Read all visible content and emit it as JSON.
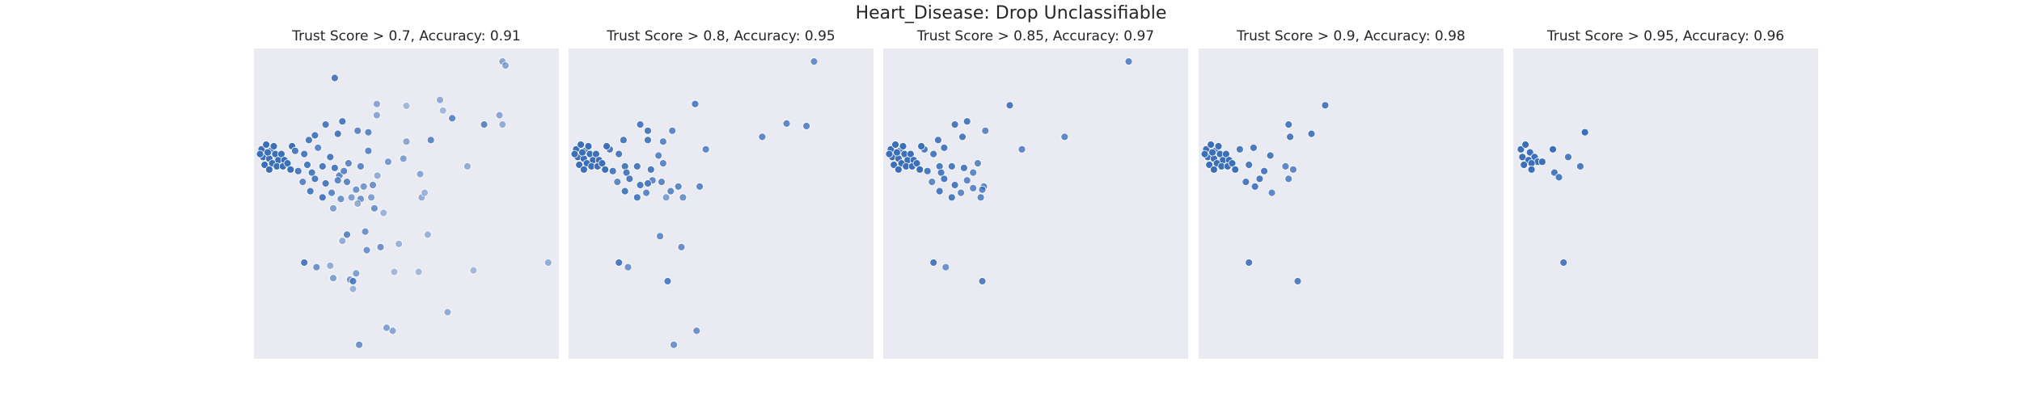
{
  "figure": {
    "title": "Heart_Disease: Drop Unclassifiable"
  },
  "chart_data": [
    {
      "type": "scatter",
      "title": "Trust Score > 0.7, Accuracy: 0.91",
      "xlim": [
        0,
        100
      ],
      "ylim": [
        0,
        100
      ],
      "grid": false,
      "color": "#3b6fba",
      "points": [
        [
          81.5,
          95.8,
          0.55
        ],
        [
          82.5,
          94.5,
          0.55
        ],
        [
          61.0,
          83.4,
          0.5
        ],
        [
          26.5,
          90.5,
          0.9
        ],
        [
          40.3,
          82.1,
          0.55
        ],
        [
          40.3,
          78.5,
          0.55
        ],
        [
          50,
          81.5,
          0.4
        ],
        [
          62,
          80,
          0.4
        ],
        [
          80.5,
          78.5,
          0.55
        ],
        [
          75.5,
          75.5,
          0.8
        ],
        [
          81.5,
          75.5,
          0.5
        ],
        [
          65,
          77.5,
          0.8
        ],
        [
          58,
          70.5,
          0.8
        ],
        [
          2.5,
          67.5,
          1
        ],
        [
          4,
          69,
          1
        ],
        [
          5.5,
          67,
          1
        ],
        [
          7,
          66,
          1
        ],
        [
          3,
          65,
          1
        ],
        [
          5,
          64.5,
          1
        ],
        [
          8,
          64,
          1
        ],
        [
          6,
          63,
          1
        ],
        [
          3.5,
          62.5,
          1
        ],
        [
          7.5,
          62,
          1
        ],
        [
          5,
          61,
          1
        ],
        [
          9,
          66,
          1
        ],
        [
          2,
          66,
          1
        ],
        [
          6.5,
          68.5,
          1
        ],
        [
          4.5,
          66.5,
          1
        ],
        [
          10,
          64,
          1
        ],
        [
          9.5,
          62,
          1
        ],
        [
          11,
          63,
          1
        ],
        [
          12,
          61,
          1
        ],
        [
          12.5,
          68.5,
          1
        ],
        [
          13.5,
          67,
          0.9
        ],
        [
          18,
          70.5,
          0.9
        ],
        [
          20,
          72,
          0.9
        ],
        [
          23.5,
          75.5,
          0.9
        ],
        [
          29,
          76.5,
          0.9
        ],
        [
          27.5,
          72.5,
          0.9
        ],
        [
          34,
          73.5,
          0.8
        ],
        [
          37.5,
          73,
          0.8
        ],
        [
          21,
          68,
          0.8
        ],
        [
          16.5,
          66,
          0.9
        ],
        [
          25,
          65,
          0.9
        ],
        [
          17.5,
          62.5,
          0.9
        ],
        [
          22.5,
          62,
          0.9
        ],
        [
          14.5,
          60.5,
          0.9
        ],
        [
          19,
          60,
          0.9
        ],
        [
          26.5,
          61.5,
          0.9
        ],
        [
          28,
          59,
          0.8
        ],
        [
          30.5,
          57,
          0.8
        ],
        [
          35,
          62,
          0.8
        ],
        [
          31,
          63,
          0.8
        ],
        [
          37.5,
          67,
          0.8
        ],
        [
          44,
          63.5,
          0.65
        ],
        [
          20,
          58,
          0.9
        ],
        [
          23.5,
          56.5,
          0.9
        ],
        [
          16,
          57,
          0.8
        ],
        [
          25.5,
          53.5,
          0.8
        ],
        [
          18.5,
          54,
          0.9
        ],
        [
          27.5,
          57.5,
          0.8
        ],
        [
          32,
          52,
          0.6
        ],
        [
          33.5,
          54.5,
          0.7
        ],
        [
          35,
          51.5,
          0.7
        ],
        [
          38.5,
          52,
          0.6
        ],
        [
          36,
          55.5,
          0.65
        ],
        [
          39,
          56,
          0.7
        ],
        [
          29.5,
          60.5,
          0.8
        ],
        [
          50,
          70,
          0.55
        ],
        [
          54.5,
          59.5,
          0.55
        ],
        [
          49,
          64.5,
          0.6
        ],
        [
          34,
          50,
          0.5
        ],
        [
          40.5,
          59,
          0.5
        ],
        [
          22.5,
          52,
          0.9
        ],
        [
          28.5,
          51.5,
          0.7
        ],
        [
          26,
          48.5,
          0.6
        ],
        [
          39.5,
          48.5,
          0.7
        ],
        [
          42.5,
          47,
          0.45
        ],
        [
          55,
          52,
          0.5
        ],
        [
          56,
          53.5,
          0.45
        ],
        [
          70,
          62,
          0.5
        ],
        [
          30.5,
          40,
          0.8
        ],
        [
          29,
          38,
          0.5
        ],
        [
          36.5,
          41,
          0.7
        ],
        [
          33.5,
          27.5,
          0.6
        ],
        [
          37,
          35,
          0.7
        ],
        [
          41.5,
          36,
          0.7
        ],
        [
          47.5,
          37,
          0.45
        ],
        [
          57,
          40,
          0.45
        ],
        [
          16.5,
          31,
          0.9
        ],
        [
          20.5,
          29.5,
          0.7
        ],
        [
          26,
          26,
          0.6
        ],
        [
          31.5,
          25.5,
          0.65
        ],
        [
          32.5,
          25,
          0.85
        ],
        [
          25,
          30,
          0.5
        ],
        [
          32.5,
          22.5,
          0.45
        ],
        [
          46,
          28,
          0.4
        ],
        [
          54,
          28,
          0.4
        ],
        [
          72,
          28.5,
          0.4
        ],
        [
          96.5,
          31,
          0.5
        ],
        [
          45.5,
          9,
          0.55
        ],
        [
          43.5,
          10,
          0.6
        ],
        [
          34.5,
          4.5,
          0.7
        ],
        [
          63.5,
          15,
          0.5
        ]
      ]
    },
    {
      "type": "scatter",
      "title": "Trust Score > 0.8, Accuracy: 0.95",
      "xlim": [
        0,
        100
      ],
      "ylim": [
        0,
        100
      ],
      "grid": false,
      "color": "#3b6fba",
      "points": [
        [
          80.5,
          95.8,
          0.75
        ],
        [
          41.5,
          82.1,
          0.85
        ],
        [
          63.5,
          71.5,
          0.8
        ],
        [
          71.5,
          75.8,
          0.8
        ],
        [
          78,
          75,
          0.8
        ],
        [
          13.5,
          67.5,
          0.9
        ],
        [
          18,
          70.5,
          0.9
        ],
        [
          23.5,
          75.5,
          0.9
        ],
        [
          26,
          73.5,
          0.9
        ],
        [
          34,
          73.5,
          0.8
        ],
        [
          26,
          70.5,
          0.9
        ],
        [
          31,
          70,
          0.8
        ],
        [
          45,
          67.5,
          0.8
        ],
        [
          2.5,
          67.5,
          1
        ],
        [
          4,
          69,
          1
        ],
        [
          5.5,
          67,
          1
        ],
        [
          7,
          66,
          1
        ],
        [
          3,
          65,
          1
        ],
        [
          5,
          64.5,
          1
        ],
        [
          8,
          64,
          1
        ],
        [
          6,
          63,
          1
        ],
        [
          3.5,
          62.5,
          1
        ],
        [
          7.5,
          62,
          1
        ],
        [
          5,
          61,
          1
        ],
        [
          9,
          66,
          1
        ],
        [
          2,
          66,
          1
        ],
        [
          6.5,
          68.5,
          1
        ],
        [
          4.5,
          66.5,
          1
        ],
        [
          10,
          64,
          1
        ],
        [
          9.5,
          62,
          1
        ],
        [
          11,
          63,
          1
        ],
        [
          12,
          61,
          1
        ],
        [
          12.5,
          68.5,
          1
        ],
        [
          16.5,
          66,
          0.9
        ],
        [
          18.5,
          62,
          0.9
        ],
        [
          22.5,
          62,
          0.9
        ],
        [
          14.5,
          60.5,
          0.9
        ],
        [
          19,
          60,
          0.9
        ],
        [
          27,
          61,
          0.9
        ],
        [
          30.5,
          57,
          0.8
        ],
        [
          31,
          63,
          0.8
        ],
        [
          29.5,
          65.5,
          0.8
        ],
        [
          20,
          58,
          0.9
        ],
        [
          23.5,
          56,
          0.9
        ],
        [
          16,
          57,
          0.8
        ],
        [
          25.5,
          53.5,
          0.8
        ],
        [
          18.5,
          54,
          0.9
        ],
        [
          27.5,
          57.5,
          0.8
        ],
        [
          32,
          52,
          0.6
        ],
        [
          33.5,
          54,
          0.8
        ],
        [
          37.5,
          52,
          0.7
        ],
        [
          36,
          55.5,
          0.8
        ],
        [
          43,
          55.5,
          0.8
        ],
        [
          22.5,
          52,
          0.9
        ],
        [
          26,
          56.5,
          0.9
        ],
        [
          30,
          39.5,
          0.75
        ],
        [
          37,
          36,
          0.75
        ],
        [
          16.5,
          31,
          0.9
        ],
        [
          19.5,
          29.5,
          0.7
        ],
        [
          32.5,
          25,
          0.85
        ],
        [
          42,
          9,
          0.7
        ],
        [
          34.5,
          4.5,
          0.7
        ]
      ]
    },
    {
      "type": "scatter",
      "title": "Trust Score > 0.85, Accuracy: 0.97",
      "xlim": [
        0,
        100
      ],
      "ylim": [
        0,
        100
      ],
      "grid": false,
      "color": "#3b6fba",
      "points": [
        [
          80.5,
          95.8,
          0.8
        ],
        [
          41.5,
          81.7,
          0.9
        ],
        [
          59.5,
          71.5,
          0.8
        ],
        [
          45.5,
          67.5,
          0.8
        ],
        [
          23.5,
          75.5,
          0.9
        ],
        [
          27.5,
          76.5,
          0.9
        ],
        [
          26,
          71.5,
          0.9
        ],
        [
          33.5,
          73.5,
          0.8
        ],
        [
          13.5,
          67.5,
          0.9
        ],
        [
          18,
          70.5,
          0.9
        ],
        [
          20,
          68,
          0.9
        ],
        [
          2.5,
          67.5,
          1
        ],
        [
          4,
          69,
          1
        ],
        [
          5.5,
          67,
          1
        ],
        [
          7,
          66,
          1
        ],
        [
          3,
          65,
          1
        ],
        [
          5,
          64.5,
          1
        ],
        [
          8,
          64,
          1
        ],
        [
          6,
          63,
          1
        ],
        [
          3.5,
          62.5,
          1
        ],
        [
          7.5,
          62,
          1
        ],
        [
          5,
          61,
          1
        ],
        [
          9,
          66,
          1
        ],
        [
          2,
          66,
          1
        ],
        [
          6.5,
          68.5,
          1
        ],
        [
          4.5,
          66.5,
          1
        ],
        [
          10,
          64,
          1
        ],
        [
          9.5,
          62,
          1
        ],
        [
          11,
          63,
          1
        ],
        [
          12,
          61,
          1
        ],
        [
          12.5,
          68.5,
          1
        ],
        [
          16.5,
          66,
          0.9
        ],
        [
          18.5,
          62,
          0.9
        ],
        [
          22.5,
          62,
          0.9
        ],
        [
          14.5,
          60.5,
          0.9
        ],
        [
          19,
          60,
          0.9
        ],
        [
          26.5,
          61.5,
          0.9
        ],
        [
          29.5,
          60,
          0.8
        ],
        [
          31,
          63,
          0.8
        ],
        [
          20,
          58,
          0.9
        ],
        [
          23.5,
          56,
          0.9
        ],
        [
          16,
          57,
          0.8
        ],
        [
          25.5,
          53.5,
          0.8
        ],
        [
          18.5,
          54,
          0.9
        ],
        [
          27.5,
          57.5,
          0.8
        ],
        [
          29.5,
          55,
          0.8
        ],
        [
          33,
          55.5,
          0.8
        ],
        [
          32,
          52,
          0.8
        ],
        [
          32.5,
          54.5,
          0.8
        ],
        [
          22.5,
          52,
          0.9
        ],
        [
          16.5,
          31,
          0.9
        ],
        [
          20.5,
          29.5,
          0.7
        ],
        [
          32.5,
          25,
          0.85
        ]
      ]
    },
    {
      "type": "scatter",
      "title": "Trust Score > 0.9, Accuracy: 0.98",
      "xlim": [
        0,
        100
      ],
      "ylim": [
        0,
        100
      ],
      "grid": false,
      "color": "#3b6fba",
      "points": [
        [
          41.5,
          81.7,
          0.9
        ],
        [
          29.5,
          75.5,
          0.9
        ],
        [
          30,
          71.5,
          0.9
        ],
        [
          37,
          72.5,
          0.9
        ],
        [
          13.5,
          67.5,
          0.9
        ],
        [
          18,
          68,
          0.9
        ],
        [
          23.5,
          65.5,
          0.9
        ],
        [
          2.5,
          67.5,
          1
        ],
        [
          4,
          69,
          1
        ],
        [
          5.5,
          67,
          1
        ],
        [
          7,
          66,
          1
        ],
        [
          3,
          65,
          1
        ],
        [
          5,
          64.5,
          1
        ],
        [
          8,
          64,
          1
        ],
        [
          6,
          63,
          1
        ],
        [
          3.5,
          62.5,
          1
        ],
        [
          7.5,
          62,
          1
        ],
        [
          5,
          61,
          1
        ],
        [
          9,
          66,
          1
        ],
        [
          2,
          66,
          1
        ],
        [
          6.5,
          68.5,
          1
        ],
        [
          4.5,
          66.5,
          1
        ],
        [
          10,
          64,
          1
        ],
        [
          9.5,
          62,
          1
        ],
        [
          11,
          63,
          1
        ],
        [
          12,
          61,
          1
        ],
        [
          16.5,
          62.5,
          0.9
        ],
        [
          21.5,
          60.5,
          0.9
        ],
        [
          20,
          58,
          0.9
        ],
        [
          28.5,
          62,
          0.8
        ],
        [
          31,
          61,
          0.8
        ],
        [
          29.5,
          58,
          0.8
        ],
        [
          18.5,
          55.5,
          0.9
        ],
        [
          15.5,
          57,
          0.9
        ],
        [
          24,
          53.5,
          0.8
        ],
        [
          16.5,
          31,
          0.9
        ],
        [
          32.5,
          25,
          0.85
        ]
      ]
    },
    {
      "type": "scatter",
      "title": "Trust Score > 0.95, Accuracy: 0.96",
      "xlim": [
        0,
        100
      ],
      "ylim": [
        0,
        100
      ],
      "grid": false,
      "color": "#3b6fba",
      "points": [
        [
          23.5,
          73,
          1
        ],
        [
          13,
          67.5,
          1
        ],
        [
          2.5,
          67.5,
          1
        ],
        [
          4,
          69,
          1
        ],
        [
          5.5,
          66.5,
          1
        ],
        [
          7,
          65,
          1
        ],
        [
          3,
          65,
          1
        ],
        [
          5,
          64,
          1
        ],
        [
          8,
          63.5,
          1
        ],
        [
          6,
          63,
          1
        ],
        [
          3.5,
          62.5,
          1
        ],
        [
          9.5,
          63.5,
          1
        ],
        [
          6,
          61,
          1
        ],
        [
          18,
          65,
          0.9
        ],
        [
          22,
          62,
          0.9
        ],
        [
          13.5,
          60,
          0.9
        ],
        [
          15,
          58.5,
          0.9
        ],
        [
          16.5,
          31,
          0.9
        ]
      ]
    }
  ]
}
